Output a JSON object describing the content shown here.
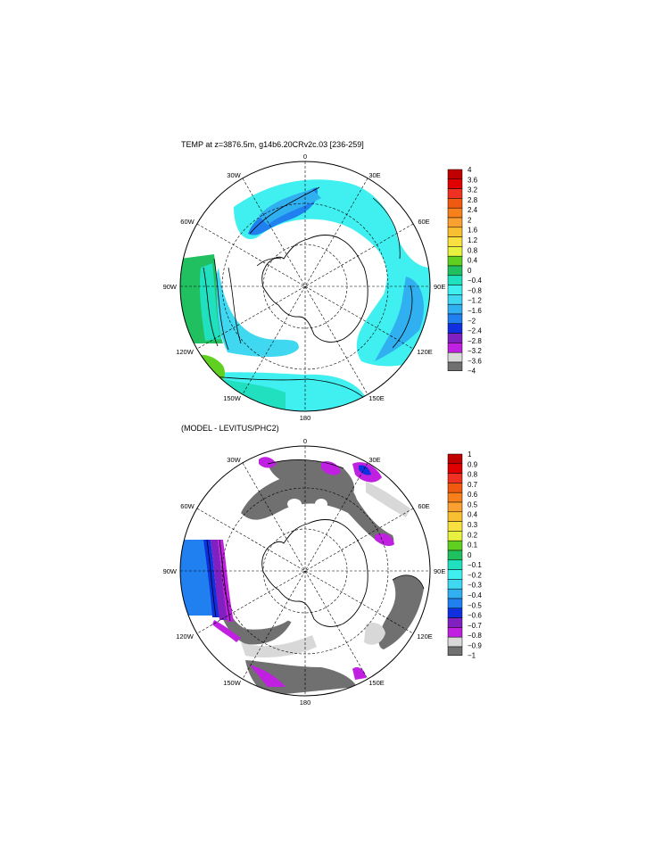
{
  "panels": [
    {
      "title": "TEMP at z=3876.5m, g14b6.20CRv2c.03 [236-259]",
      "lon_labels": {
        "top": "0",
        "bottom": "180",
        "left": "90W",
        "right": "90E",
        "upper_left_1": "30W",
        "upper_left_2": "60W",
        "upper_right_1": "30E",
        "upper_right_2": "60E",
        "lower_left_1": "120W",
        "lower_left_2": "150W",
        "lower_right_1": "120E",
        "lower_right_2": "150E"
      },
      "colorbar": {
        "labels": [
          "4",
          "3.6",
          "3.2",
          "2.8",
          "2.4",
          "2",
          "1.6",
          "1.2",
          "0.8",
          "0.4",
          "0",
          "−0.4",
          "−0.8",
          "−1.2",
          "−1.6",
          "−2",
          "−2.4",
          "−2.8",
          "−3.2",
          "−3.6",
          "−4"
        ],
        "colors": [
          "#c00000",
          "#e00000",
          "#f03020",
          "#f05a10",
          "#f8801c",
          "#f8a030",
          "#f8c030",
          "#f8e040",
          "#e8f040",
          "#60d020",
          "#20c060",
          "#20e0c0",
          "#40f0f0",
          "#40d8f0",
          "#30b0f0",
          "#2080f0",
          "#1030e0",
          "#8020c0",
          "#c020e0",
          "#d8d8d8",
          "#707070"
        ]
      }
    },
    {
      "title": "(MODEL - LEVITUS/PHC2)",
      "lon_labels": {
        "top": "0",
        "bottom": "180",
        "left": "90W",
        "right": "90E",
        "upper_left_1": "30W",
        "upper_left_2": "60W",
        "upper_right_1": "30E",
        "upper_right_2": "60E",
        "lower_left_1": "120W",
        "lower_left_2": "150W",
        "lower_right_1": "120E",
        "lower_right_2": "150E"
      },
      "colorbar": {
        "labels": [
          "1",
          "0.9",
          "0.8",
          "0.7",
          "0.6",
          "0.5",
          "0.4",
          "0.3",
          "0.2",
          "0.1",
          "0",
          "−0.1",
          "−0.2",
          "−0.3",
          "−0.4",
          "−0.5",
          "−0.6",
          "−0.7",
          "−0.8",
          "−0.9",
          "−1"
        ],
        "colors": [
          "#c00000",
          "#e00000",
          "#f03020",
          "#f05a10",
          "#f8801c",
          "#f8a030",
          "#f8c030",
          "#f8e040",
          "#e8f040",
          "#60d020",
          "#20c060",
          "#20e0c0",
          "#40f0f0",
          "#40d8f0",
          "#30b0f0",
          "#2080f0",
          "#1030e0",
          "#8020c0",
          "#c020e0",
          "#d8d8d8",
          "#707070"
        ]
      }
    }
  ]
}
